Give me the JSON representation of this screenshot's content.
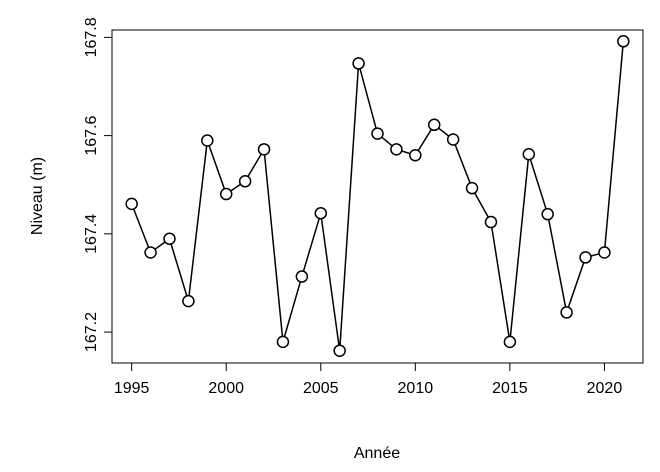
{
  "chart_data": {
    "type": "line",
    "xlabel": "Année",
    "ylabel": "Niveau (m)",
    "x": [
      1995,
      1996,
      1997,
      1998,
      1999,
      2000,
      2001,
      2002,
      2003,
      2004,
      2005,
      2006,
      2007,
      2008,
      2009,
      2010,
      2011,
      2012,
      2013,
      2014,
      2015,
      2016,
      2017,
      2018,
      2019,
      2020,
      2021
    ],
    "series": [
      {
        "color": "#000000",
        "values": [
          167.461,
          167.362,
          167.39,
          167.263,
          167.59,
          167.481,
          167.507,
          167.572,
          167.18,
          167.313,
          167.442,
          167.162,
          167.747,
          167.604,
          167.572,
          167.56,
          167.622,
          167.592,
          167.493,
          167.424,
          167.18,
          167.562,
          167.44,
          167.24,
          167.352,
          167.362,
          167.792
        ]
      }
    ],
    "xlim": [
      1993.96,
      2022.04
    ],
    "ylim": [
      167.137,
      167.815
    ],
    "xticks": [
      1995,
      2000,
      2005,
      2010,
      2015,
      2020
    ],
    "yticks": [
      167.2,
      167.4,
      167.6,
      167.8
    ]
  }
}
